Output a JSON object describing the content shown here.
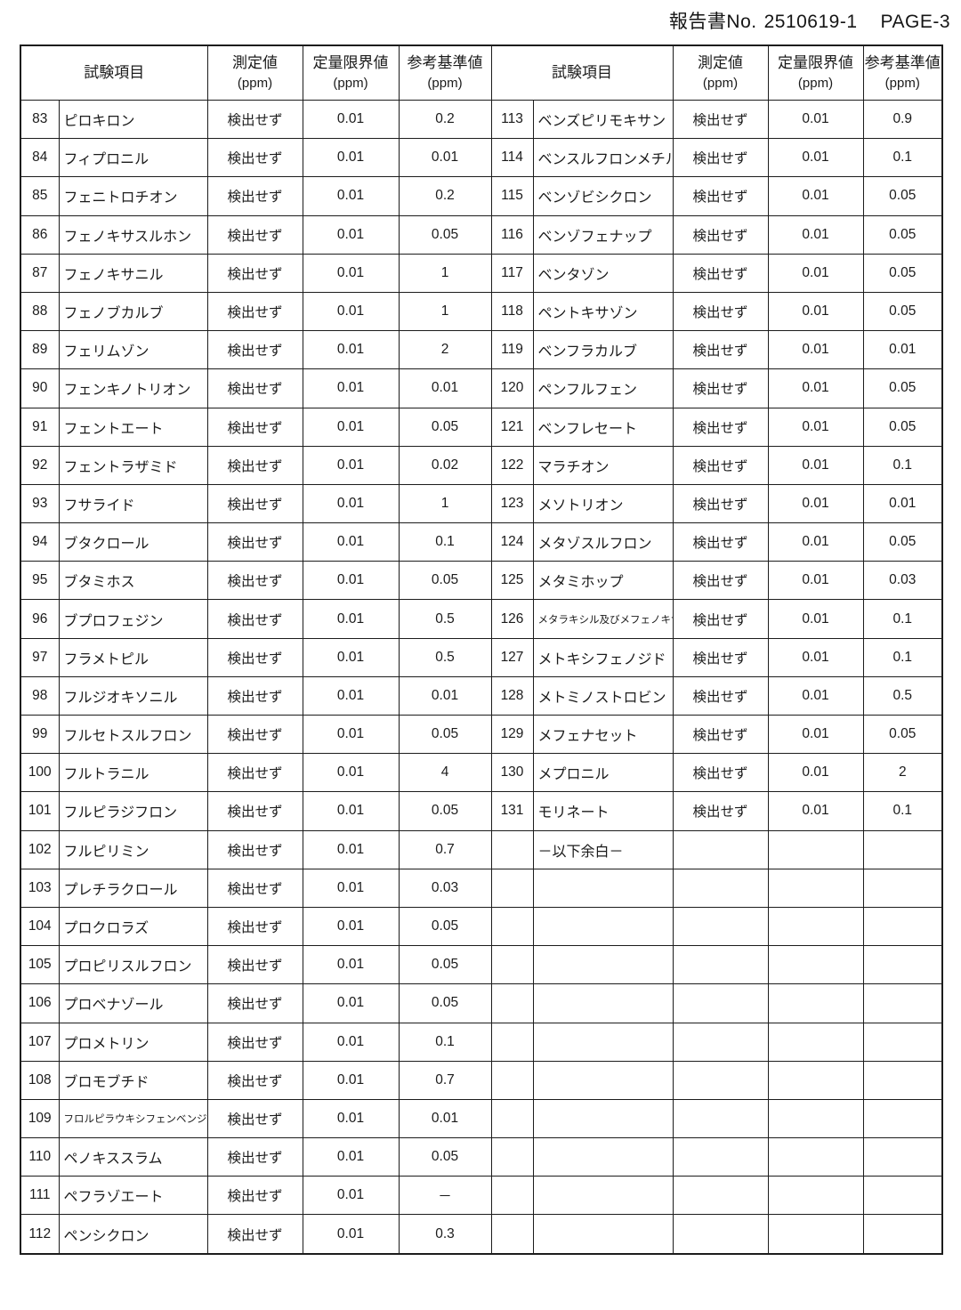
{
  "page_header": {
    "report_label": "報告書No.",
    "report_number": "2510619-1",
    "page_label": "PAGE-3"
  },
  "table": {
    "columns": {
      "item": "試験項目",
      "measured": "測定値",
      "limit": "定量限界値",
      "reference": "参考基準値",
      "unit": "(ppm)"
    },
    "left_rows": [
      {
        "no": "83",
        "item": "ピロキロン",
        "measured": "検出せず",
        "limit": "0.01",
        "reference": "0.2"
      },
      {
        "no": "84",
        "item": "フィプロニル",
        "measured": "検出せず",
        "limit": "0.01",
        "reference": "0.01"
      },
      {
        "no": "85",
        "item": "フェニトロチオン",
        "measured": "検出せず",
        "limit": "0.01",
        "reference": "0.2"
      },
      {
        "no": "86",
        "item": "フェノキサスルホン",
        "measured": "検出せず",
        "limit": "0.01",
        "reference": "0.05"
      },
      {
        "no": "87",
        "item": "フェノキサニル",
        "measured": "検出せず",
        "limit": "0.01",
        "reference": "1"
      },
      {
        "no": "88",
        "item": "フェノブカルブ",
        "measured": "検出せず",
        "limit": "0.01",
        "reference": "1"
      },
      {
        "no": "89",
        "item": "フェリムゾン",
        "measured": "検出せず",
        "limit": "0.01",
        "reference": "2"
      },
      {
        "no": "90",
        "item": "フェンキノトリオン",
        "measured": "検出せず",
        "limit": "0.01",
        "reference": "0.01"
      },
      {
        "no": "91",
        "item": "フェントエート",
        "measured": "検出せず",
        "limit": "0.01",
        "reference": "0.05"
      },
      {
        "no": "92",
        "item": "フェントラザミド",
        "measured": "検出せず",
        "limit": "0.01",
        "reference": "0.02"
      },
      {
        "no": "93",
        "item": "フサライド",
        "measured": "検出せず",
        "limit": "0.01",
        "reference": "1"
      },
      {
        "no": "94",
        "item": "ブタクロール",
        "measured": "検出せず",
        "limit": "0.01",
        "reference": "0.1"
      },
      {
        "no": "95",
        "item": "ブタミホス",
        "measured": "検出せず",
        "limit": "0.01",
        "reference": "0.05"
      },
      {
        "no": "96",
        "item": "ブプロフェジン",
        "measured": "検出せず",
        "limit": "0.01",
        "reference": "0.5"
      },
      {
        "no": "97",
        "item": "フラメトピル",
        "measured": "検出せず",
        "limit": "0.01",
        "reference": "0.5"
      },
      {
        "no": "98",
        "item": "フルジオキソニル",
        "measured": "検出せず",
        "limit": "0.01",
        "reference": "0.01"
      },
      {
        "no": "99",
        "item": "フルセトスルフロン",
        "measured": "検出せず",
        "limit": "0.01",
        "reference": "0.05"
      },
      {
        "no": "100",
        "item": "フルトラニル",
        "measured": "検出せず",
        "limit": "0.01",
        "reference": "4"
      },
      {
        "no": "101",
        "item": "フルピラジフロン",
        "measured": "検出せず",
        "limit": "0.01",
        "reference": "0.05"
      },
      {
        "no": "102",
        "item": "フルピリミン",
        "measured": "検出せず",
        "limit": "0.01",
        "reference": "0.7"
      },
      {
        "no": "103",
        "item": "プレチラクロール",
        "measured": "検出せず",
        "limit": "0.01",
        "reference": "0.03"
      },
      {
        "no": "104",
        "item": "プロクロラズ",
        "measured": "検出せず",
        "limit": "0.01",
        "reference": "0.05"
      },
      {
        "no": "105",
        "item": "プロピリスルフロン",
        "measured": "検出せず",
        "limit": "0.01",
        "reference": "0.05"
      },
      {
        "no": "106",
        "item": "プロベナゾール",
        "measured": "検出せず",
        "limit": "0.01",
        "reference": "0.05"
      },
      {
        "no": "107",
        "item": "プロメトリン",
        "measured": "検出せず",
        "limit": "0.01",
        "reference": "0.1"
      },
      {
        "no": "108",
        "item": "ブロモブチド",
        "measured": "検出せず",
        "limit": "0.01",
        "reference": "0.7"
      },
      {
        "no": "109",
        "item": "フロルピラウキシフェンベンジル",
        "small": true,
        "measured": "検出せず",
        "limit": "0.01",
        "reference": "0.01"
      },
      {
        "no": "110",
        "item": "ペノキススラム",
        "measured": "検出せず",
        "limit": "0.01",
        "reference": "0.05"
      },
      {
        "no": "111",
        "item": "ペフラゾエート",
        "measured": "検出せず",
        "limit": "0.01",
        "reference": "－"
      },
      {
        "no": "112",
        "item": "ペンシクロン",
        "measured": "検出せず",
        "limit": "0.01",
        "reference": "0.3"
      }
    ],
    "right_rows": [
      {
        "no": "113",
        "item": "ベンズピリモキサン",
        "measured": "検出せず",
        "limit": "0.01",
        "reference": "0.9"
      },
      {
        "no": "114",
        "item": "ベンスルフロンメチル",
        "measured": "検出せず",
        "limit": "0.01",
        "reference": "0.1"
      },
      {
        "no": "115",
        "item": "ベンゾビシクロン",
        "measured": "検出せず",
        "limit": "0.01",
        "reference": "0.05"
      },
      {
        "no": "116",
        "item": "ベンゾフェナップ",
        "measured": "検出せず",
        "limit": "0.01",
        "reference": "0.05"
      },
      {
        "no": "117",
        "item": "ベンタゾン",
        "measured": "検出せず",
        "limit": "0.01",
        "reference": "0.05"
      },
      {
        "no": "118",
        "item": "ペントキサゾン",
        "measured": "検出せず",
        "limit": "0.01",
        "reference": "0.05"
      },
      {
        "no": "119",
        "item": "ベンフラカルブ",
        "measured": "検出せず",
        "limit": "0.01",
        "reference": "0.01"
      },
      {
        "no": "120",
        "item": "ペンフルフェン",
        "measured": "検出せず",
        "limit": "0.01",
        "reference": "0.05"
      },
      {
        "no": "121",
        "item": "ベンフレセート",
        "measured": "検出せず",
        "limit": "0.01",
        "reference": "0.05"
      },
      {
        "no": "122",
        "item": "マラチオン",
        "measured": "検出せず",
        "limit": "0.01",
        "reference": "0.1"
      },
      {
        "no": "123",
        "item": "メソトリオン",
        "measured": "検出せず",
        "limit": "0.01",
        "reference": "0.01"
      },
      {
        "no": "124",
        "item": "メタゾスルフロン",
        "measured": "検出せず",
        "limit": "0.01",
        "reference": "0.05"
      },
      {
        "no": "125",
        "item": "メタミホップ",
        "measured": "検出せず",
        "limit": "0.01",
        "reference": "0.03"
      },
      {
        "no": "126",
        "item": "メタラキシル及びメフェノキサム",
        "small": true,
        "measured": "検出せず",
        "limit": "0.01",
        "reference": "0.1"
      },
      {
        "no": "127",
        "item": "メトキシフェノジド",
        "measured": "検出せず",
        "limit": "0.01",
        "reference": "0.1"
      },
      {
        "no": "128",
        "item": "メトミノストロビン",
        "measured": "検出せず",
        "limit": "0.01",
        "reference": "0.5"
      },
      {
        "no": "129",
        "item": "メフェナセット",
        "measured": "検出せず",
        "limit": "0.01",
        "reference": "0.05"
      },
      {
        "no": "130",
        "item": "メプロニル",
        "measured": "検出せず",
        "limit": "0.01",
        "reference": "2"
      },
      {
        "no": "131",
        "item": "モリネート",
        "measured": "検出せず",
        "limit": "0.01",
        "reference": "0.1"
      },
      {
        "no": "",
        "item": "－以下余白－",
        "measured": "",
        "limit": "",
        "reference": ""
      },
      {
        "no": "",
        "item": "",
        "measured": "",
        "limit": "",
        "reference": ""
      },
      {
        "no": "",
        "item": "",
        "measured": "",
        "limit": "",
        "reference": ""
      },
      {
        "no": "",
        "item": "",
        "measured": "",
        "limit": "",
        "reference": ""
      },
      {
        "no": "",
        "item": "",
        "measured": "",
        "limit": "",
        "reference": ""
      },
      {
        "no": "",
        "item": "",
        "measured": "",
        "limit": "",
        "reference": ""
      },
      {
        "no": "",
        "item": "",
        "measured": "",
        "limit": "",
        "reference": ""
      },
      {
        "no": "",
        "item": "",
        "measured": "",
        "limit": "",
        "reference": ""
      },
      {
        "no": "",
        "item": "",
        "measured": "",
        "limit": "",
        "reference": ""
      },
      {
        "no": "",
        "item": "",
        "measured": "",
        "limit": "",
        "reference": ""
      }
    ]
  }
}
